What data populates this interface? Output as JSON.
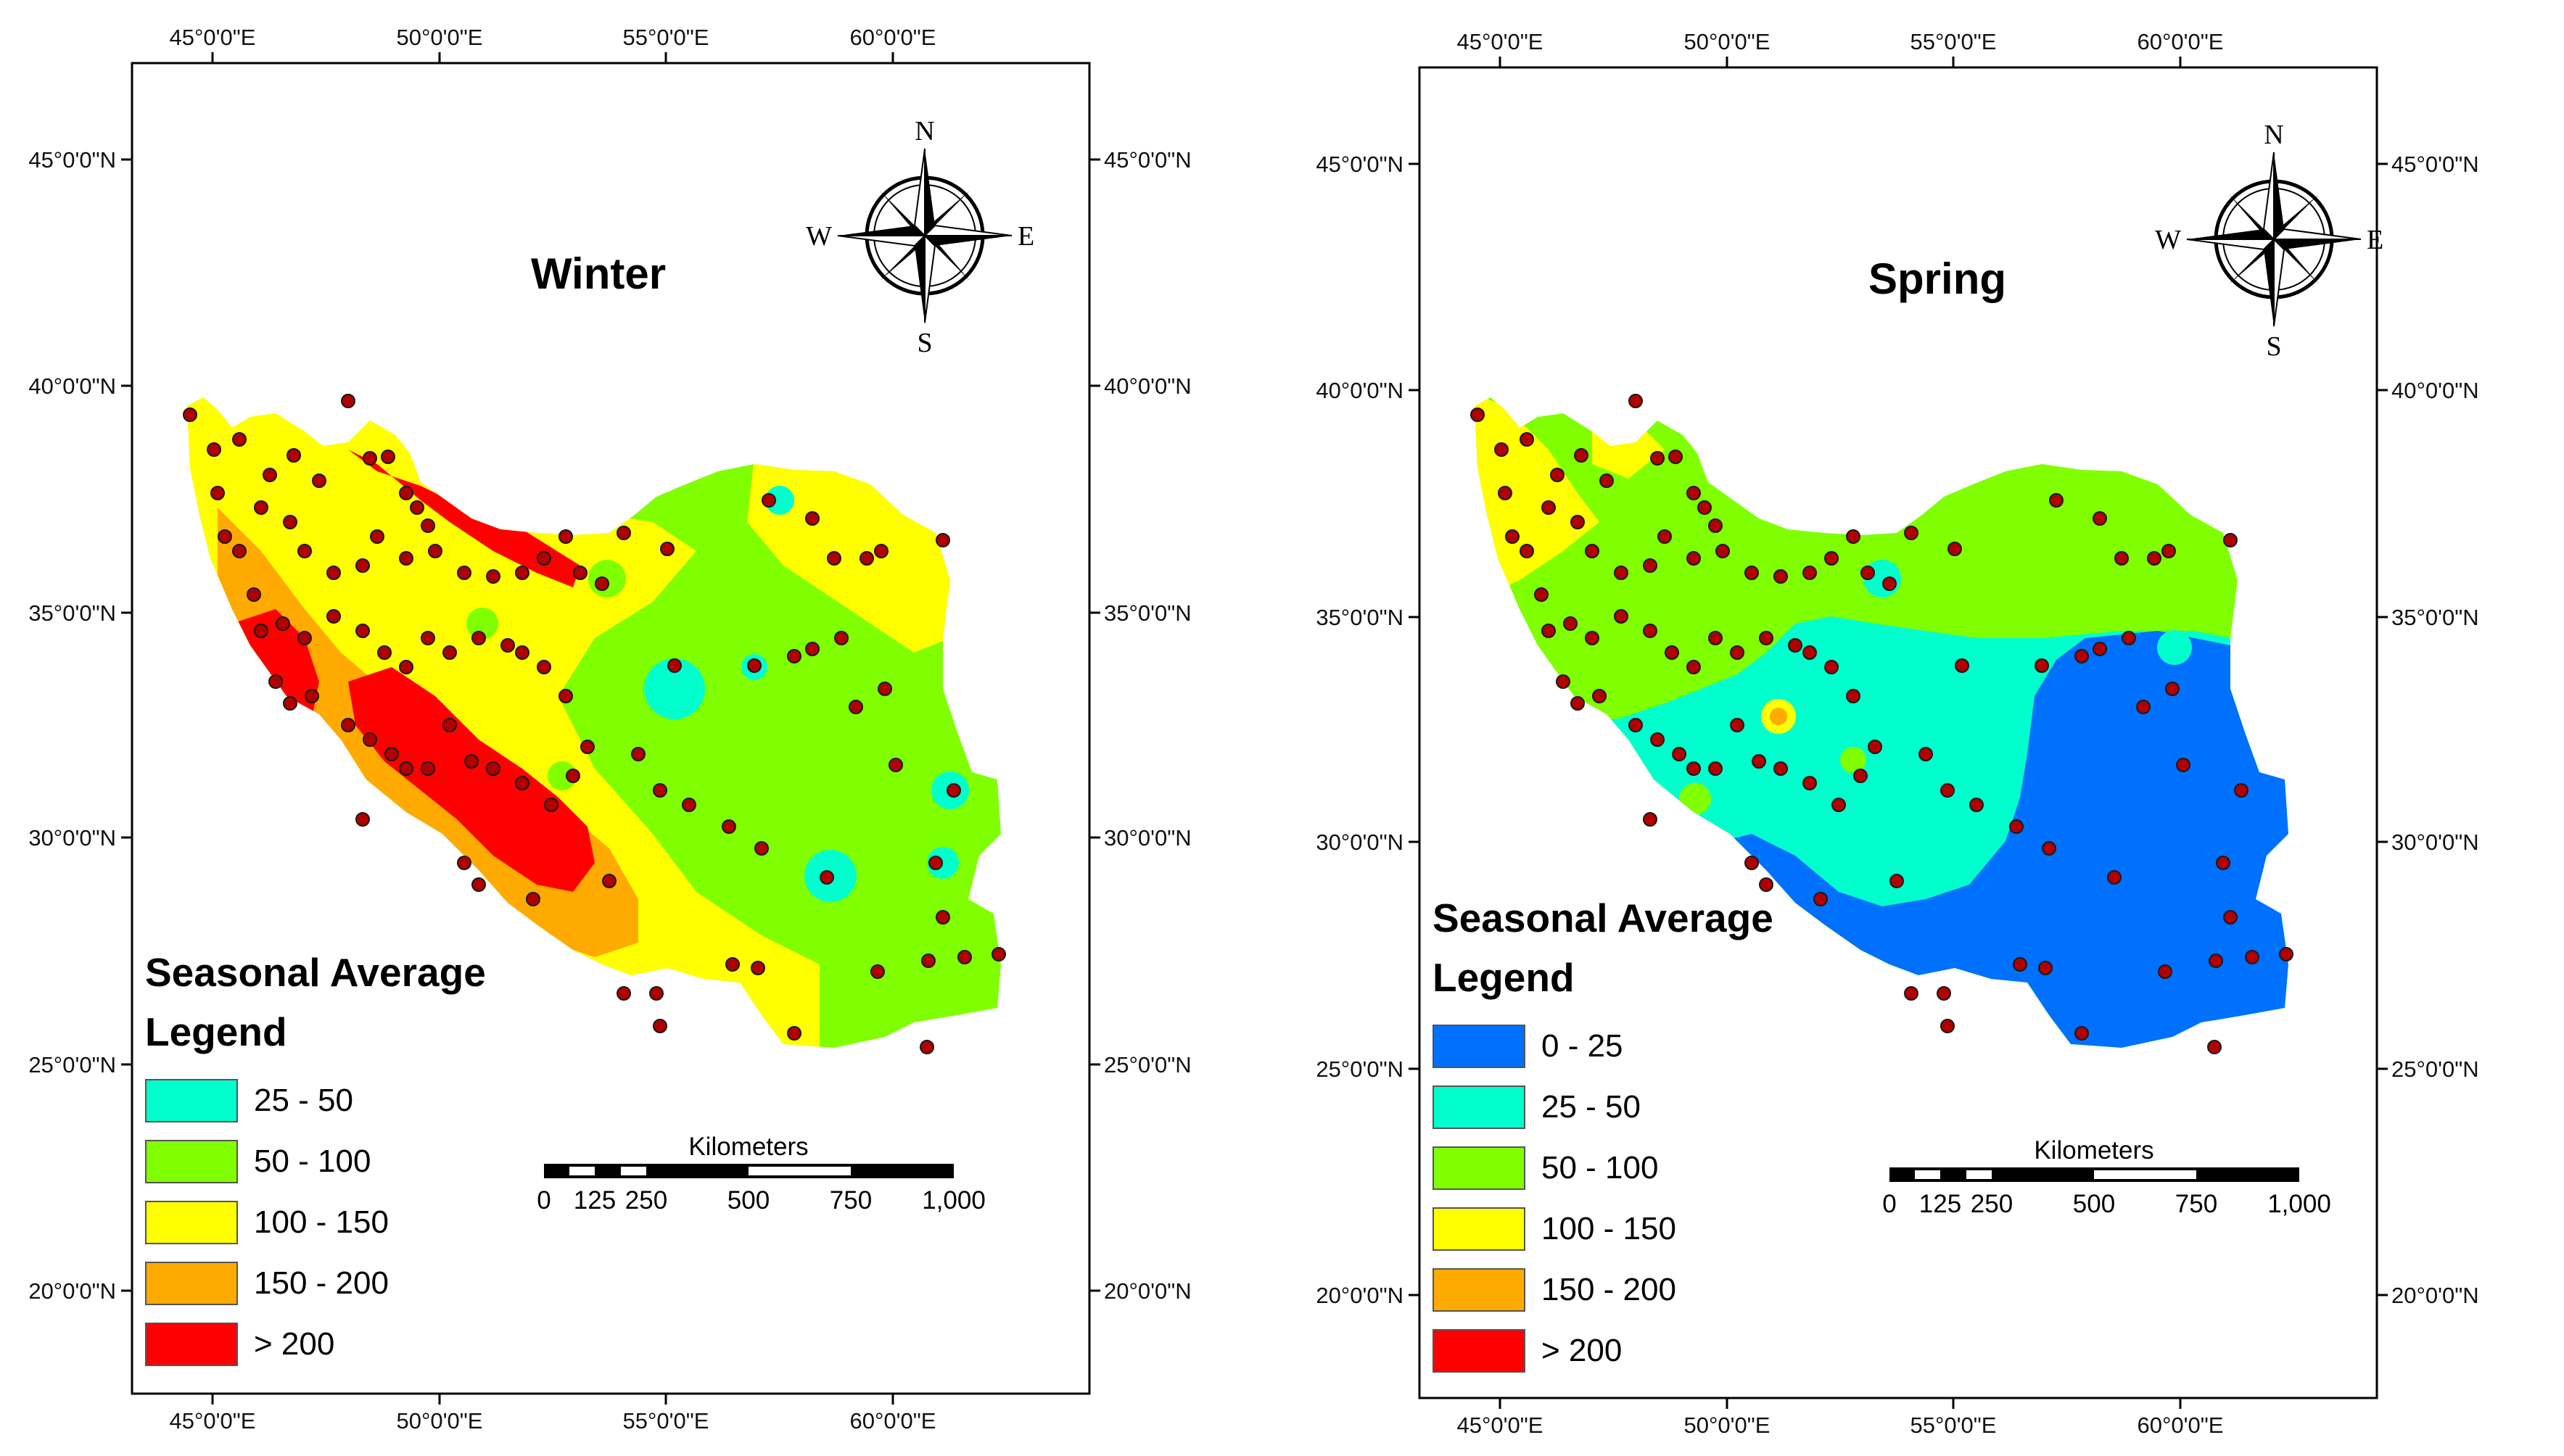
{
  "maps": [
    {
      "id": "winter",
      "title": "Winter",
      "legend": {
        "title_line1": "Seasonal Average",
        "title_line2": "Legend",
        "items": [
          {
            "label": "25 - 50",
            "color": "#00FFCC"
          },
          {
            "label": "50 - 100",
            "color": "#80FF00"
          },
          {
            "label": "100 - 150",
            "color": "#FFFF00"
          },
          {
            "label": "150 - 200",
            "color": "#FFAA00"
          },
          {
            "label": "> 200",
            "color": "#FF0000"
          }
        ]
      }
    },
    {
      "id": "spring",
      "title": "Spring",
      "legend": {
        "title_line1": "Seasonal Average",
        "title_line2": "Legend",
        "items": [
          {
            "label": "0 - 25",
            "color": "#0070FF"
          },
          {
            "label": "25 - 50",
            "color": "#00FFCC"
          },
          {
            "label": "50 - 100",
            "color": "#80FF00"
          },
          {
            "label": "100 - 150",
            "color": "#FFFF00"
          },
          {
            "label": "150 - 200",
            "color": "#FFAA00"
          },
          {
            "label": "> 200",
            "color": "#FF0000"
          }
        ]
      }
    }
  ],
  "axes": {
    "longitude_labels": [
      "45°0'0\"E",
      "50°0'0\"E",
      "55°0'0\"E",
      "60°0'0\"E"
    ],
    "latitude_labels": [
      "45°0'0\"N",
      "40°0'0\"N",
      "35°0'0\"N",
      "30°0'0\"N",
      "25°0'0\"N",
      "20°0'0\"N"
    ]
  },
  "compass": {
    "north": "N",
    "south": "S",
    "east": "E",
    "west": "W"
  },
  "scale_bar": {
    "unit_label": "Kilometers",
    "tick_labels": [
      "0",
      "125",
      "250",
      "500",
      "750",
      "1,000"
    ]
  },
  "station_color": "#B00000"
}
